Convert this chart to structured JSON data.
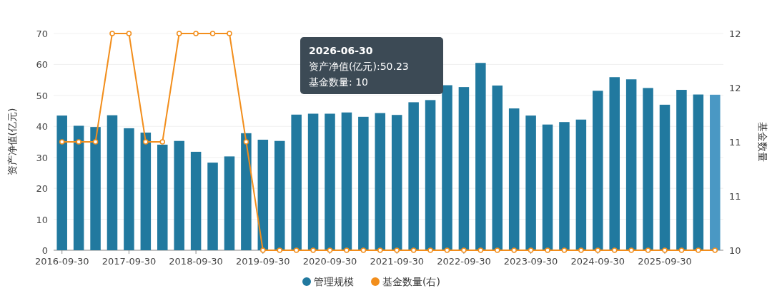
{
  "chart_data": {
    "type": "bar",
    "ylabel": "资产净值(亿元)",
    "y2label": "基金数量",
    "categories": [
      "2016-09-30",
      null,
      null,
      null,
      "2017-09-30",
      null,
      null,
      null,
      "2018-09-30",
      null,
      null,
      null,
      "2019-09-30",
      null,
      null,
      null,
      "2020-09-30",
      null,
      null,
      null,
      "2021-09-30",
      null,
      null,
      null,
      "2022-09-30",
      null,
      null,
      null,
      "2023-09-30",
      null,
      null,
      null,
      "2024-09-30",
      null,
      null,
      null,
      "2025-09-30",
      null,
      null,
      null
    ],
    "series": [
      {
        "name": "管理规模",
        "color": "#21799f",
        "colors": [
          "#21799f",
          "#21799f",
          "#21799f",
          "#21799f",
          "#21799f",
          "#21799f",
          "#21799f",
          "#21799f",
          "#21799f",
          "#21799f",
          "#21799f",
          "#21799f",
          "#21799f",
          "#21799f",
          "#21799f",
          "#21799f",
          "#21799f",
          "#21799f",
          "#21799f",
          "#21799f",
          "#21799f",
          "#21799f",
          "#21799f",
          "#21799f",
          "#21799f",
          "#21799f",
          "#21799f",
          "#21799f",
          "#21799f",
          "#21799f",
          "#21799f",
          "#21799f",
          "#21799f",
          "#21799f",
          "#21799f",
          "#21799f",
          "#21799f",
          "#21799f",
          "#21799f",
          "#4a98c4"
        ],
        "values": [
          43.5,
          40.2,
          39.8,
          43.6,
          39.4,
          38.0,
          34.1,
          35.3,
          31.8,
          28.3,
          30.3,
          37.8,
          35.7,
          35.3,
          43.8,
          44.1,
          44.1,
          44.5,
          43.1,
          44.3,
          43.7,
          47.8,
          48.5,
          53.3,
          52.7,
          60.5,
          53.2,
          45.8,
          43.5,
          40.6,
          41.4,
          42.2,
          51.5,
          55.9,
          55.2,
          52.4,
          47.0,
          51.8,
          50.3,
          50.23
        ]
      },
      {
        "name": "基金数量(右)",
        "type": "line",
        "axis": "y2",
        "color": "#f28e1c",
        "marker": "circle",
        "values": [
          11,
          11,
          11,
          12,
          12,
          11,
          11,
          12,
          12,
          12,
          12,
          11,
          10,
          10,
          10,
          10,
          10,
          10,
          10,
          10,
          10,
          10,
          10,
          10,
          10,
          10,
          10,
          10,
          10,
          10,
          10,
          10,
          10,
          10,
          10,
          10,
          10,
          10,
          10,
          10
        ]
      }
    ],
    "ylim": [
      0,
      70
    ],
    "yticks": [
      0,
      10,
      20,
      30,
      40,
      50,
      60,
      70
    ],
    "y2lim": [
      10,
      12
    ],
    "y2ticks": [
      10,
      {
        "value": 10.5,
        "label": "11"
      },
      11,
      {
        "value": 11.5,
        "label": "12"
      },
      12
    ],
    "grid": "y",
    "legend": "bottom",
    "annotations": [
      "2026-06-30",
      "资产净值(亿元):50.23",
      "基金数量: 10"
    ]
  }
}
